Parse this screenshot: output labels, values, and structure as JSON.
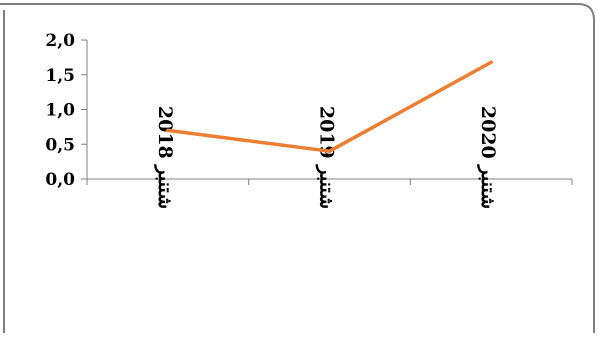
{
  "chart_data": {
    "type": "line",
    "categories": [
      "شتنبر 2018",
      "شتنبر 2019",
      "شتنبر 2020"
    ],
    "series": [
      {
        "values": [
          0.7,
          0.4,
          1.68
        ]
      }
    ],
    "ylim": [
      0,
      2
    ],
    "yticks": [
      "0,0",
      "0,5",
      "1,0",
      "1,5",
      "2,0"
    ],
    "grid": false,
    "legend": "none",
    "colors": {
      "line": "#ED7D31",
      "axis": "#808080",
      "frame": "#7f7f7f"
    }
  }
}
